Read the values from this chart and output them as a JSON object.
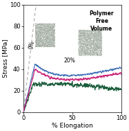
{
  "title": "",
  "xlabel": "% Elongation",
  "ylabel": "Stress [MPa]",
  "xlim": [
    0,
    100
  ],
  "ylim": [
    0,
    100
  ],
  "xticks": [
    0,
    50,
    100
  ],
  "yticks": [
    0,
    20,
    40,
    60,
    80,
    100
  ],
  "label_0pct": "0%",
  "label_20pct": "20%",
  "label_polymer": "Polymer\nFree\nVolume",
  "color_blue": "#4472b8",
  "color_red": "#cc2277",
  "color_green": "#1a5c3a",
  "color_dashed": "#aaaaaa",
  "figsize": [
    1.87,
    1.89
  ],
  "dpi": 100,
  "blob_color": "#a0aba0",
  "blob_edge": "#888f88"
}
